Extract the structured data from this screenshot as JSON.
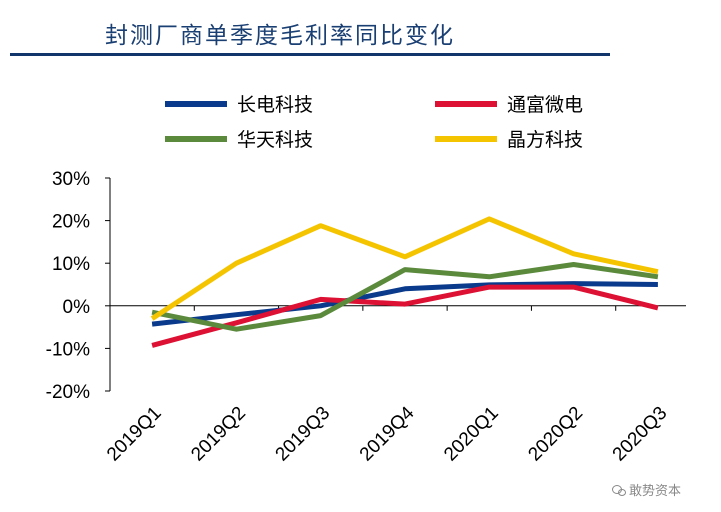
{
  "header": {
    "title": "封测厂商单季度毛利率同比变化"
  },
  "watermark": {
    "text": "敢势资本",
    "icon": "wechat-icon"
  },
  "chart_data": {
    "type": "line",
    "title": "",
    "xlabel": "",
    "ylabel": "",
    "categories": [
      "2019Q1",
      "2019Q2",
      "2019Q3",
      "2019Q4",
      "2020Q1",
      "2020Q2",
      "2020Q3"
    ],
    "ylim": [
      -20,
      30
    ],
    "yticks": [
      -20,
      -10,
      0,
      10,
      20,
      30
    ],
    "ytick_labels": [
      "-20%",
      "-10%",
      "0%",
      "10%",
      "20%",
      "30%"
    ],
    "y_unit": "%",
    "grid": false,
    "legend_position": "top",
    "series": [
      {
        "name": "长电科技",
        "color": "#0a3a8c",
        "values": [
          -4.3,
          -2.1,
          0.0,
          4.0,
          4.9,
          5.2,
          5.0
        ]
      },
      {
        "name": "通富微电",
        "color": "#dd1133",
        "values": [
          -9.3,
          -4.0,
          1.5,
          0.4,
          4.4,
          4.4,
          -0.5
        ]
      },
      {
        "name": "华天科技",
        "color": "#5b8a3c",
        "values": [
          -1.5,
          -5.5,
          -2.3,
          8.5,
          6.8,
          9.7,
          6.8
        ]
      },
      {
        "name": "晶方科技",
        "color": "#f5c400",
        "values": [
          -3.0,
          10.0,
          18.8,
          11.5,
          20.4,
          12.2,
          8.0
        ]
      }
    ]
  }
}
